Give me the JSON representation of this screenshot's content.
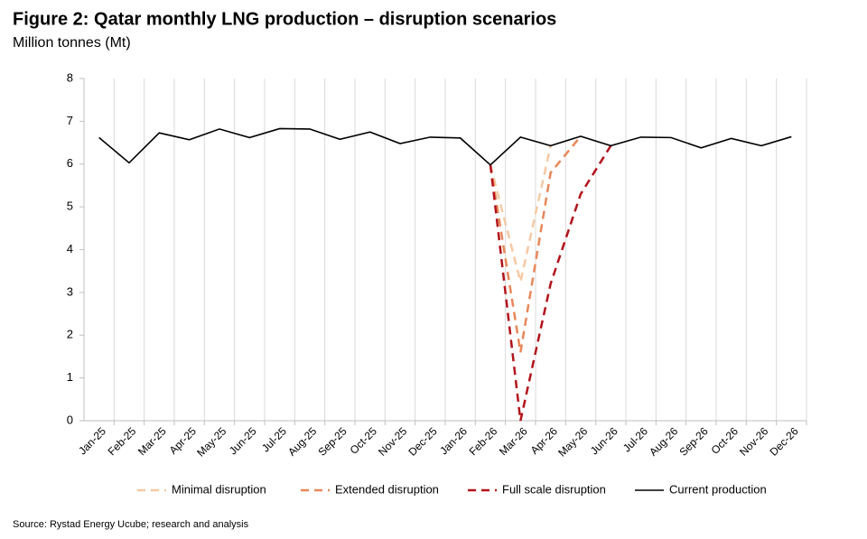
{
  "chart_data": {
    "type": "line",
    "title": "Figure 2: Qatar monthly LNG production – disruption scenarios",
    "subtitle": "Million tonnes (Mt)",
    "source": "Source: Rystad Energy Ucube; research and analysis",
    "categories": [
      "Jan-25",
      "Feb-25",
      "Mar-25",
      "Apr-25",
      "May-25",
      "Jun-25",
      "Jul-25",
      "Aug-25",
      "Sep-25",
      "Oct-25",
      "Nov-25",
      "Dec-25",
      "Jan-26",
      "Feb-26",
      "Mar-26",
      "Apr-26",
      "May-26",
      "Jun-26",
      "Jul-26",
      "Aug-26",
      "Sep-26",
      "Oct-26",
      "Nov-26",
      "Dec-26"
    ],
    "series": [
      {
        "name": "Minimal disruption",
        "color": "#f5c9a3",
        "dashed": true,
        "values": [
          null,
          null,
          null,
          null,
          null,
          null,
          null,
          null,
          null,
          null,
          null,
          null,
          null,
          5.98,
          3.25,
          6.43,
          null,
          null,
          null,
          null,
          null,
          null,
          null,
          null
        ]
      },
      {
        "name": "Extended disruption",
        "color": "#e8875a",
        "dashed": true,
        "values": [
          null,
          null,
          null,
          null,
          null,
          null,
          null,
          null,
          null,
          null,
          null,
          null,
          null,
          5.98,
          1.6,
          5.8,
          6.65,
          null,
          null,
          null,
          null,
          null,
          null,
          null
        ]
      },
      {
        "name": "Full scale disruption",
        "color": "#b3121b",
        "dashed": true,
        "values": [
          null,
          null,
          null,
          null,
          null,
          null,
          null,
          null,
          null,
          null,
          null,
          null,
          null,
          5.98,
          0,
          3.2,
          5.3,
          6.43,
          null,
          null,
          null,
          null,
          null,
          null
        ]
      },
      {
        "name": "Current production",
        "color": "#000000",
        "dashed": false,
        "values": [
          6.62,
          6.03,
          6.73,
          6.57,
          6.82,
          6.62,
          6.83,
          6.82,
          6.58,
          6.75,
          6.48,
          6.63,
          6.61,
          5.98,
          6.63,
          6.43,
          6.65,
          6.43,
          6.63,
          6.62,
          6.38,
          6.6,
          6.43,
          6.64
        ]
      }
    ],
    "ylim": [
      0,
      8
    ],
    "yticks": [
      0,
      1,
      2,
      3,
      4,
      5,
      6,
      7,
      8
    ],
    "grid": true,
    "legend": "bottom"
  }
}
